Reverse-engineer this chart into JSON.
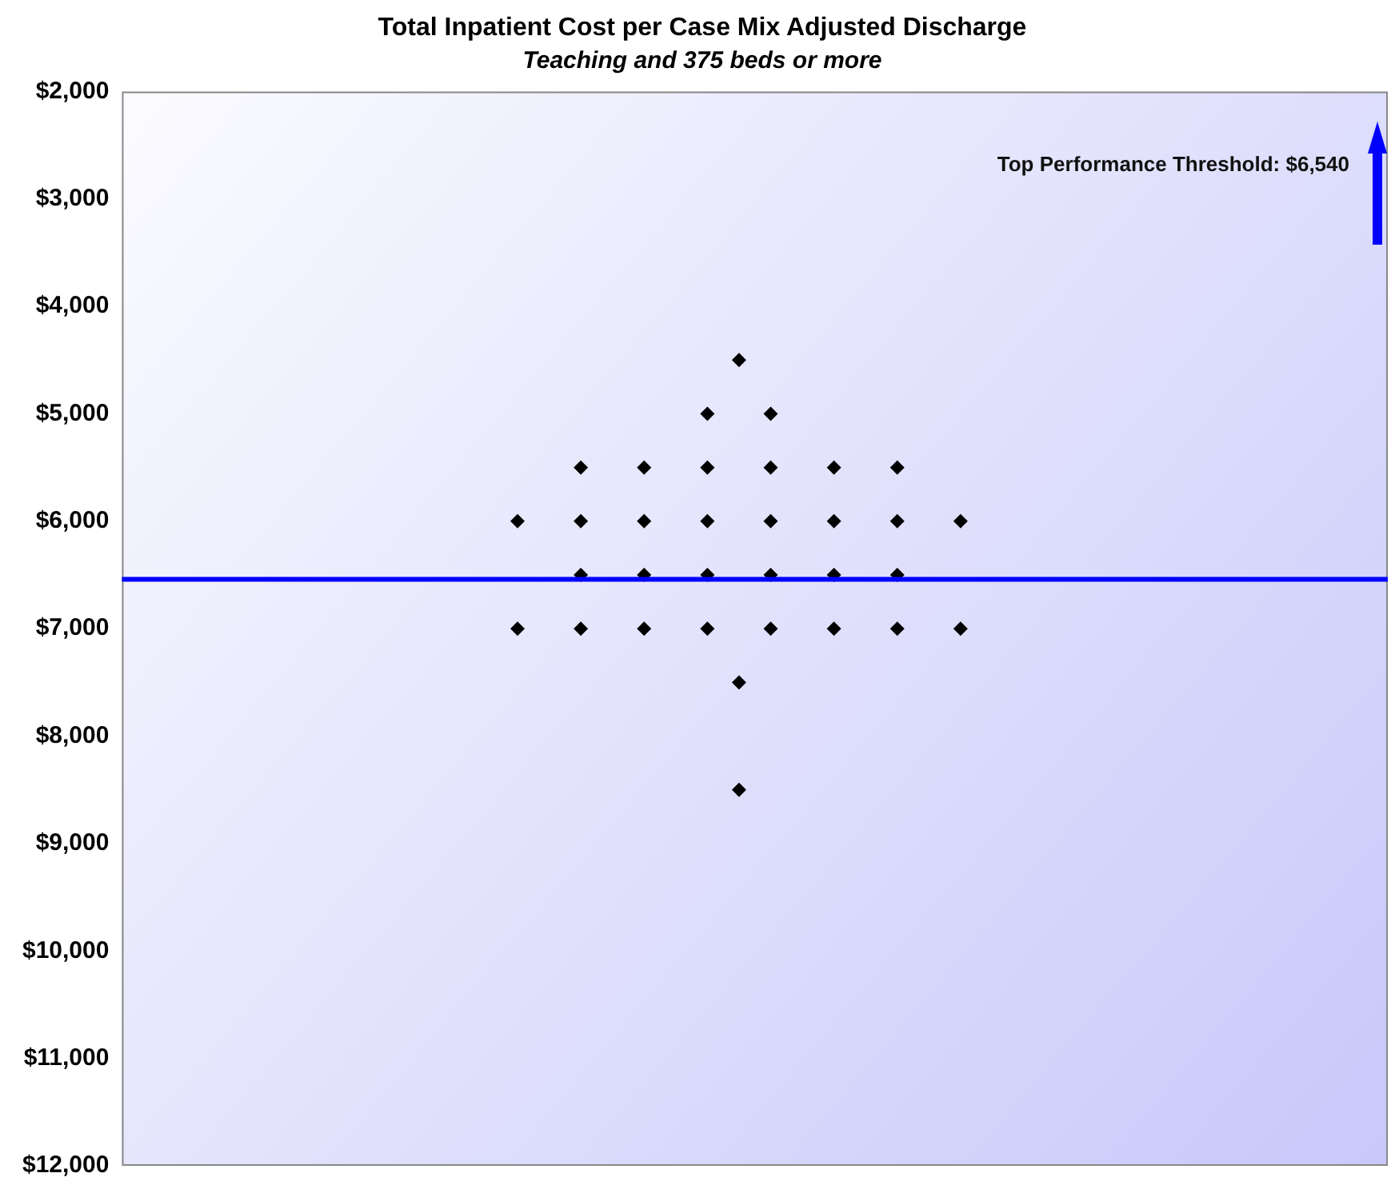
{
  "chart_data": {
    "type": "scatter",
    "title": "Total Inpatient Cost per Case Mix Adjusted Discharge",
    "subtitle": "Teaching and 375 beds or more",
    "categories": [
      null,
      null,
      null,
      null,
      null,
      null,
      null,
      null,
      null,
      null,
      null,
      null,
      null,
      null,
      null,
      null,
      null,
      null,
      null,
      null,
      null,
      null,
      null,
      null,
      null,
      null,
      null,
      null,
      null,
      null,
      null,
      null,
      null,
      null,
      null,
      null,
      null,
      null,
      null,
      null
    ],
    "series": [
      {
        "color": "#000000",
        "values": [
          null,
          null,
          null,
          null,
          null,
          null,
          null,
          null,
          null,
          null,
          null,
          null,
          null,
          null,
          null,
          null,
          null,
          null,
          null,
          4500,
          null,
          null,
          null,
          null,
          null,
          null,
          null,
          null,
          null,
          null,
          null,
          null,
          null,
          null,
          null,
          null,
          null,
          null,
          null,
          null
        ]
      },
      {
        "color": "#000000",
        "values": [
          null,
          null,
          null,
          null,
          null,
          null,
          null,
          null,
          null,
          null,
          null,
          null,
          null,
          null,
          null,
          null,
          null,
          null,
          5000,
          null,
          5000,
          null,
          null,
          null,
          null,
          null,
          null,
          null,
          null,
          null,
          null,
          null,
          null,
          null,
          null,
          null,
          null,
          null,
          null,
          null
        ]
      },
      {
        "color": "#000000",
        "values": [
          null,
          null,
          null,
          null,
          null,
          null,
          null,
          null,
          null,
          null,
          null,
          null,
          null,
          null,
          5500,
          null,
          5500,
          null,
          5500,
          null,
          5500,
          null,
          5500,
          null,
          5500,
          null,
          null,
          null,
          null,
          null,
          null,
          null,
          null,
          null,
          null,
          null,
          null,
          null,
          null,
          null
        ]
      },
      {
        "color": "#000000",
        "values": [
          null,
          null,
          null,
          null,
          null,
          null,
          null,
          null,
          null,
          null,
          null,
          null,
          6000,
          null,
          6000,
          null,
          6000,
          null,
          6000,
          null,
          6000,
          null,
          6000,
          null,
          6000,
          null,
          6000,
          null,
          null,
          null,
          null,
          null,
          null,
          null,
          null,
          null,
          null,
          null,
          null,
          null
        ]
      },
      {
        "color": "#000000",
        "values": [
          null,
          null,
          null,
          null,
          null,
          null,
          null,
          null,
          null,
          null,
          null,
          null,
          null,
          null,
          6500,
          null,
          6500,
          null,
          6500,
          null,
          6500,
          null,
          6500,
          null,
          6500,
          null,
          null,
          null,
          null,
          null,
          null,
          null,
          null,
          null,
          null,
          null,
          null,
          null,
          null,
          null
        ]
      },
      {
        "color": "#000000",
        "values": [
          null,
          null,
          null,
          null,
          null,
          null,
          null,
          null,
          null,
          null,
          null,
          null,
          7000,
          null,
          7000,
          null,
          7000,
          null,
          7000,
          null,
          7000,
          null,
          7000,
          null,
          7000,
          null,
          7000,
          null,
          null,
          null,
          null,
          null,
          null,
          null,
          null,
          null,
          null,
          null,
          null,
          null
        ]
      },
      {
        "color": "#000000",
        "values": [
          null,
          null,
          null,
          null,
          null,
          null,
          null,
          null,
          null,
          null,
          null,
          null,
          null,
          null,
          null,
          null,
          null,
          null,
          null,
          7500,
          null,
          null,
          null,
          null,
          null,
          null,
          null,
          null,
          null,
          null,
          null,
          null,
          null,
          null,
          null,
          null,
          null,
          null,
          null,
          null
        ]
      },
      {
        "color": "#000000",
        "values": [
          null,
          null,
          null,
          null,
          null,
          null,
          null,
          null,
          null,
          null,
          null,
          null,
          null,
          null,
          null,
          null,
          null,
          null,
          null,
          8500,
          null,
          null,
          null,
          null,
          null,
          null,
          null,
          null,
          null,
          null,
          null,
          null,
          null,
          null,
          null,
          null,
          null,
          null,
          null,
          null
        ]
      }
    ],
    "ylim": [
      12000,
      2000
    ],
    "yticks": [
      {
        "value": 2000,
        "label": "$2,000"
      },
      {
        "value": 3000,
        "label": "$3,000"
      },
      {
        "value": 4000,
        "label": "$4,000"
      },
      {
        "value": 5000,
        "label": "$5,000"
      },
      {
        "value": 6000,
        "label": "$6,000"
      },
      {
        "value": 7000,
        "label": "$7,000"
      },
      {
        "value": 8000,
        "label": "$8,000"
      },
      {
        "value": 9000,
        "label": "$9,000"
      },
      {
        "value": 10000,
        "label": "$10,000"
      },
      {
        "value": 11000,
        "label": "$11,000"
      },
      {
        "value": 12000,
        "label": "$12,000"
      }
    ],
    "tick_labels": "y",
    "marker": "diamond",
    "grid": false,
    "legend": false,
    "annotations": [
      "Top Performance Threshold: $6,540"
    ],
    "ref_lines": [
      {
        "axis": "y",
        "value": 6540,
        "color": "#0000ff"
      }
    ]
  }
}
